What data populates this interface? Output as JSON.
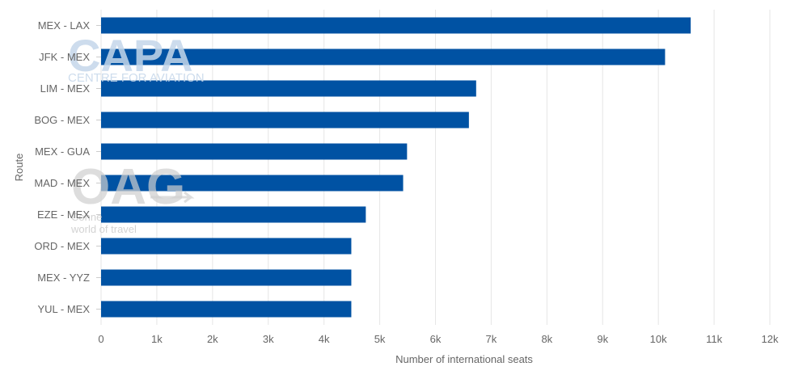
{
  "chart_data": {
    "type": "bar",
    "orientation": "horizontal",
    "categories": [
      "MEX - LAX",
      "JFK - MEX",
      "LIM - MEX",
      "BOG - MEX",
      "MEX - GUA",
      "MAD - MEX",
      "EZE - MEX",
      "ORD - MEX",
      "MEX - YYZ",
      "YUL - MEX"
    ],
    "values": [
      10580,
      10120,
      6730,
      6600,
      5490,
      5420,
      4750,
      4490,
      4490,
      4490
    ],
    "xlabel": "Number of international seats",
    "ylabel": "Route",
    "xlim": [
      0,
      12000
    ],
    "x_ticks": [
      0,
      1000,
      2000,
      3000,
      4000,
      5000,
      6000,
      7000,
      8000,
      9000,
      10000,
      11000,
      12000
    ],
    "x_tick_labels": [
      "0",
      "1k",
      "2k",
      "3k",
      "4k",
      "5k",
      "6k",
      "7k",
      "8k",
      "9k",
      "10k",
      "11k",
      "12k"
    ],
    "grid": true,
    "legend": false,
    "bar_color": "#0052a3"
  },
  "watermarks": {
    "capa_logo": "CAPA",
    "capa_tagline": "CENTRE FOR AVIATION",
    "oag_logo": "OAG",
    "oag_tagline_1": "Conne",
    "oag_tagline_2": "world of travel"
  },
  "colors": {
    "grid": "#e6e6e6",
    "axis_text": "#666666",
    "capa_watermark": "#c5d7ea",
    "oag_watermark": "#d0d0d0"
  }
}
